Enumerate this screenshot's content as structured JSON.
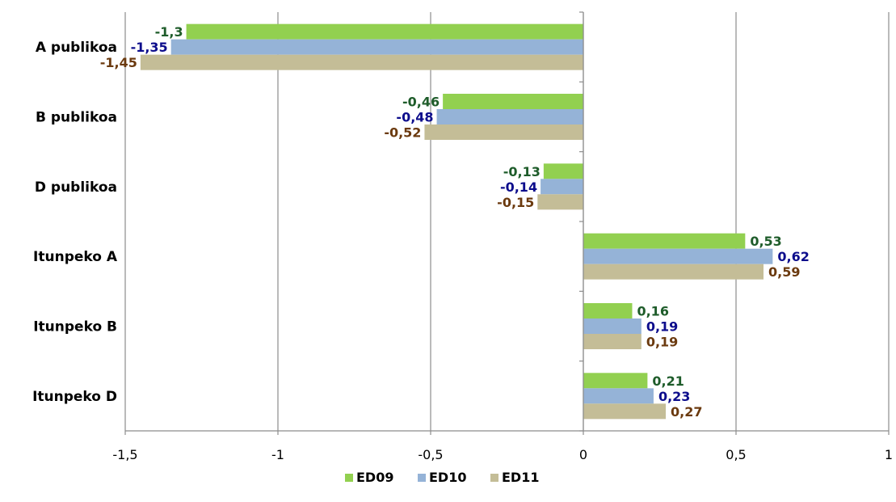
{
  "chart_data": {
    "type": "bar",
    "orientation": "horizontal",
    "categories": [
      "A publikoa",
      "B publikoa",
      "D publikoa",
      "Itunpeko A",
      "Itunpeko B",
      "Itunpeko D"
    ],
    "series": [
      {
        "name": "ED09",
        "color": "#92d050",
        "label_color": "#1e5c2a",
        "values": [
          -1.3,
          -0.46,
          -0.13,
          0.53,
          0.16,
          0.21
        ],
        "labels": [
          "-1,3",
          "-0,46",
          "-0,13",
          "0,53",
          "0,16",
          "0,21"
        ]
      },
      {
        "name": "ED10",
        "color": "#95b3d7",
        "label_color": "#0d0d8c",
        "values": [
          -1.35,
          -0.48,
          -0.14,
          0.62,
          0.19,
          0.23
        ],
        "labels": [
          "-1,35",
          "-0,48",
          "-0,14",
          "0,62",
          "0,19",
          "0,23"
        ]
      },
      {
        "name": "ED11",
        "color": "#c4bd97",
        "label_color": "#6b3a0f",
        "values": [
          -1.45,
          -0.52,
          -0.15,
          0.59,
          0.19,
          0.27
        ],
        "labels": [
          "-1,45",
          "-0,52",
          "-0,15",
          "0,59",
          "0,19",
          "0,27"
        ]
      }
    ],
    "xlim": [
      -1.5,
      1
    ],
    "xticks": [
      -1.5,
      -1,
      -0.5,
      0,
      0.5,
      1
    ],
    "xtick_labels": [
      "-1,5",
      "-1",
      "-0,5",
      "0",
      "0,5",
      "1"
    ],
    "grid": "vertical",
    "legend": "bottom"
  }
}
